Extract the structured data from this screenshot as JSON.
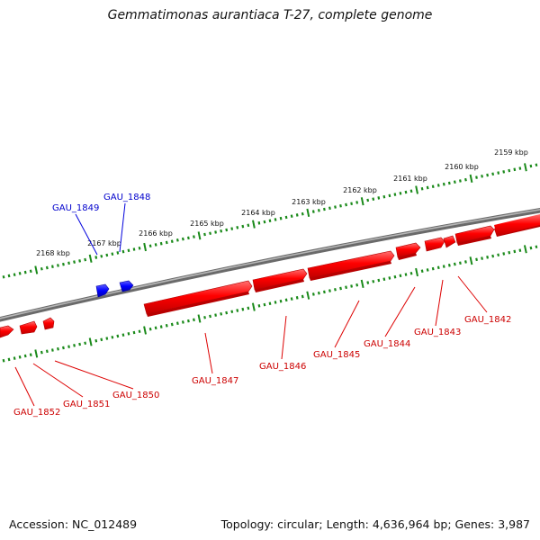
{
  "title": "Gemmatimonas aurantiaca T-27, complete genome",
  "footer": {
    "accession": "Accession: NC_012489",
    "summary": "Topology: circular; Length: 4,636,964 bp; Genes: 3,987"
  },
  "colors": {
    "forward_strand": "#ff0000",
    "reverse_strand": "#0000ff",
    "backbone": "#808080",
    "tick": "#1a8a1a",
    "forward_label": "#cc0000",
    "reverse_label": "#0000cc"
  },
  "scale": {
    "unit": "kbp",
    "labels": [
      "2159 kbp",
      "2160 kbp",
      "2161 kbp",
      "2162 kbp",
      "2163 kbp",
      "2164 kbp",
      "2165 kbp",
      "2166 kbp",
      "2167 kbp",
      "2168 kbp"
    ]
  },
  "genes": [
    {
      "name": "GAU_1842",
      "strand": "forward"
    },
    {
      "name": "GAU_1843",
      "strand": "forward"
    },
    {
      "name": "GAU_1844",
      "strand": "forward"
    },
    {
      "name": "GAU_1845",
      "strand": "forward"
    },
    {
      "name": "GAU_1846",
      "strand": "forward"
    },
    {
      "name": "GAU_1847",
      "strand": "forward"
    },
    {
      "name": "GAU_1848",
      "strand": "reverse"
    },
    {
      "name": "GAU_1849",
      "strand": "reverse"
    },
    {
      "name": "GAU_1850",
      "strand": "forward"
    },
    {
      "name": "GAU_1851",
      "strand": "forward"
    },
    {
      "name": "GAU_1852",
      "strand": "forward"
    }
  ]
}
